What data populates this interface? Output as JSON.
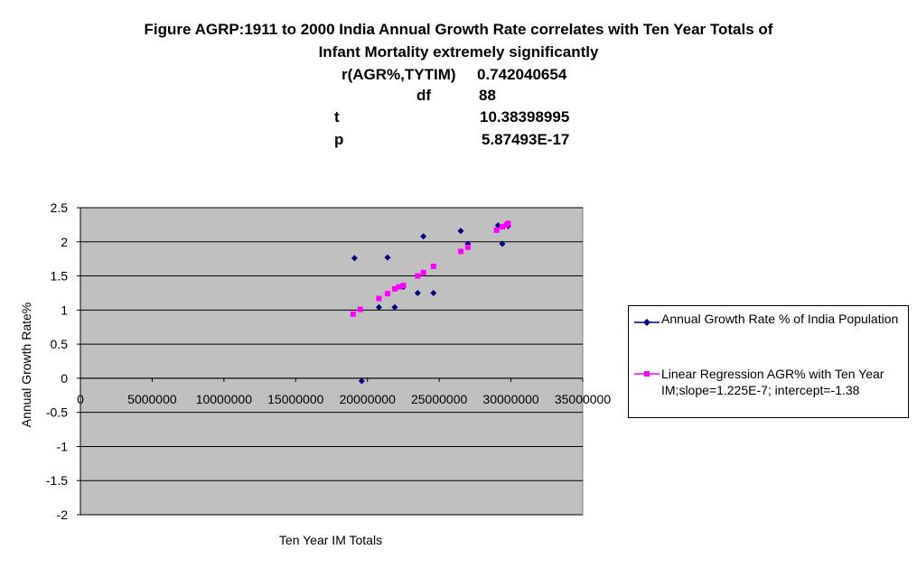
{
  "title": {
    "line1": "Figure AGRP:1911 to 2000 India Annual Growth Rate correlates with Ten Year Totals of",
    "line2": "Infant Mortality extremely significantly"
  },
  "stats": {
    "r_label": "r(AGR%,TYTIM)",
    "r_value": "0.742040654",
    "df_label": "df",
    "df_value": "88",
    "t_label": "t",
    "t_value": "10.38398995",
    "p_label": "p",
    "p_value": "5.87493E-17"
  },
  "colors": {
    "plot_bg": "#c0c0c0",
    "series1": "#000080",
    "series2": "#ff00ff"
  },
  "chart_data": {
    "type": "scatter",
    "xlabel": "Ten Year IM Totals",
    "ylabel": "Annual Growth Rate%",
    "xlim": [
      0,
      35000000
    ],
    "ylim": [
      -2,
      2.5
    ],
    "grid": true,
    "legend_position": "right",
    "x_ticks": [
      "0",
      "5000000",
      "10000000",
      "15000000",
      "20000000",
      "25000000",
      "30000000",
      "35000000"
    ],
    "y_ticks": [
      "2.5",
      "2",
      "1.5",
      "1",
      "0.5",
      "0",
      "-0.5",
      "-1",
      "-1.5",
      "-2"
    ],
    "series": [
      {
        "name": "Annual Growth Rate % of India Population",
        "marker": "diamond",
        "points": [
          [
            19100000,
            1.76
          ],
          [
            19600000,
            -0.04
          ],
          [
            20800000,
            1.04
          ],
          [
            21400000,
            1.77
          ],
          [
            21900000,
            1.04
          ],
          [
            22500000,
            1.34
          ],
          [
            23500000,
            1.25
          ],
          [
            23900000,
            2.08
          ],
          [
            24600000,
            1.25
          ],
          [
            26500000,
            2.16
          ],
          [
            27000000,
            1.97
          ],
          [
            29100000,
            2.24
          ],
          [
            29400000,
            1.97
          ],
          [
            29800000,
            2.23
          ]
        ]
      },
      {
        "name": "Linear Regression AGR% with Ten Year IM;slope=1.225E-7; intercept=-1.38",
        "marker": "square",
        "points": [
          [
            19000000,
            0.94
          ],
          [
            19500000,
            1.01
          ],
          [
            20800000,
            1.17
          ],
          [
            21400000,
            1.24
          ],
          [
            21900000,
            1.31
          ],
          [
            22200000,
            1.34
          ],
          [
            22500000,
            1.36
          ],
          [
            23500000,
            1.5
          ],
          [
            23900000,
            1.55
          ],
          [
            24600000,
            1.64
          ],
          [
            26500000,
            1.86
          ],
          [
            27000000,
            1.92
          ],
          [
            29000000,
            2.17
          ],
          [
            29400000,
            2.22
          ],
          [
            29700000,
            2.25
          ],
          [
            29800000,
            2.27
          ]
        ]
      }
    ]
  }
}
